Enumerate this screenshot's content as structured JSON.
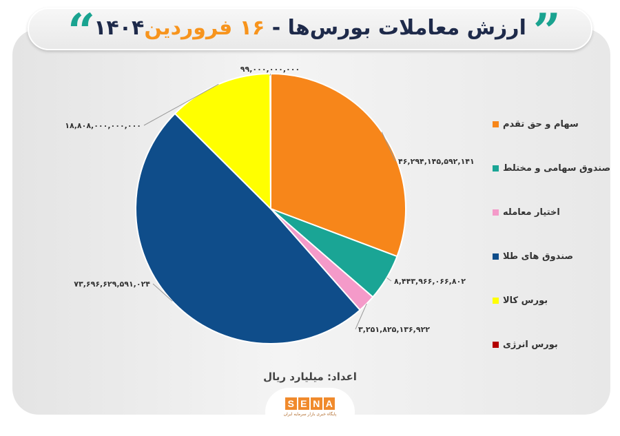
{
  "header": {
    "title_part1": "ارزش معاملات بورس‌ها -",
    "title_highlight": "۱۶ فروردین",
    "title_year": "۱۴۰۴",
    "quote_open": "”",
    "quote_close": "“"
  },
  "chart_data": {
    "type": "pie",
    "title": "ارزش معاملات بورس‌ها - ۱۶ فروردین ۱۴۰۴",
    "unit_note": "اعداد: میلیارد ریال",
    "legend_position": "right",
    "slices": [
      {
        "name": "سهام و حق تقدم",
        "value": 46294145592141,
        "label": "۴۶,۲۹۴,۱۴۵,۵۹۲,۱۴۱",
        "color": "#f7861a"
      },
      {
        "name": "صندوق سهامی و مختلط",
        "value": 8443966066802,
        "label": "۸,۴۴۳,۹۶۶,۰۶۶,۸۰۲",
        "color": "#1aa595"
      },
      {
        "name": "اختیار معامله",
        "value": 3251825136922,
        "label": "۳,۲۵۱,۸۲۵,۱۳۶,۹۲۲",
        "color": "#f49ac9"
      },
      {
        "name": "صندوق های طلا",
        "value": 73696629591024,
        "label": "۷۳,۶۹۶,۶۲۹,۵۹۱,۰۲۴",
        "color": "#0f4d8a"
      },
      {
        "name": "بورس کالا",
        "value": 18808000000000,
        "label": "۱۸,۸۰۸,۰۰۰,۰۰۰,۰۰۰",
        "color": "#ffff00"
      },
      {
        "name": "بورس انرژی",
        "value": 99000000000,
        "label": "۹۹,۰۰۰,۰۰۰,۰۰۰",
        "color": "#b30000"
      }
    ]
  },
  "footer": {
    "logo_letters": [
      "S",
      "E",
      "N",
      "A"
    ],
    "logo_tagline": "پایگاه خبری بازار سرمایه ایران"
  }
}
